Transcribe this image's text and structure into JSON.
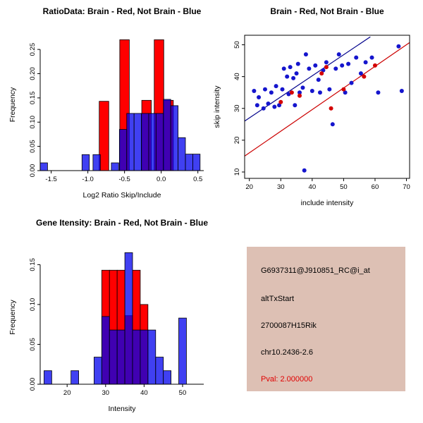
{
  "figure": {
    "bg": "#ffffff"
  },
  "colors": {
    "axis": "#000000",
    "brain_red": "#ff0000",
    "not_brain_blue": "#0000ee"
  },
  "chart_data": [
    {
      "type": "histogram",
      "title": "RatioData: Brain - Red, Not Brain - Blue",
      "xlabel": "Log2 Ratio Skip/Include",
      "ylabel": "Frequency",
      "xlim": [
        -1.65,
        0.58
      ],
      "ylim": [
        0,
        0.272
      ],
      "grid": false,
      "xticks": [
        [
          -1.5,
          "-1.5"
        ],
        [
          -1.0,
          "-1.0"
        ],
        [
          -0.5,
          "-0.5"
        ],
        [
          0.0,
          "0.0"
        ],
        [
          0.5,
          "0.5"
        ]
      ],
      "yticks": [
        [
          0,
          "0.00"
        ],
        [
          0.05,
          "0.05"
        ],
        [
          0.1,
          "0.10"
        ],
        [
          0.15,
          "0.15"
        ],
        [
          0.2,
          "0.20"
        ],
        [
          0.25,
          "0.25"
        ]
      ],
      "margins": {
        "l": 57,
        "r": 11,
        "t": 25,
        "b": 58
      },
      "series": [
        {
          "name": "Brain",
          "color": "#ff0000",
          "opacity": 1,
          "bin_width": 0.13,
          "bars": [
            [
              -0.78,
              0.143
            ],
            [
              -0.5,
              0.27
            ],
            [
              -0.2,
              0.145
            ],
            [
              -0.03,
              0.27
            ],
            [
              0.1,
              0.145
            ]
          ]
        },
        {
          "name": "Not Brain",
          "color": "#0000ee",
          "opacity": 0.75,
          "bin_width": 0.1,
          "bars": [
            [
              -1.6,
              0.016
            ],
            [
              -1.03,
              0.033
            ],
            [
              -0.88,
              0.033
            ],
            [
              -0.63,
              0.016
            ],
            [
              -0.52,
              0.085
            ],
            [
              -0.42,
              0.118
            ],
            [
              -0.32,
              0.118
            ],
            [
              -0.22,
              0.118
            ],
            [
              -0.12,
              0.118
            ],
            [
              -0.02,
              0.118
            ],
            [
              0.08,
              0.147
            ],
            [
              0.18,
              0.134
            ],
            [
              0.28,
              0.068
            ],
            [
              0.38,
              0.034
            ],
            [
              0.48,
              0.034
            ]
          ]
        }
      ]
    },
    {
      "type": "scatter",
      "title": "Brain - Red, Not Brain - Blue",
      "xlabel": "include intensity",
      "ylabel": "skip intensity",
      "xlim": [
        18.5,
        71
      ],
      "ylim": [
        8,
        53
      ],
      "box": true,
      "grid": false,
      "xticks": [
        [
          20,
          "20"
        ],
        [
          30,
          "30"
        ],
        [
          40,
          "40"
        ],
        [
          50,
          "50"
        ],
        [
          60,
          "60"
        ],
        [
          70,
          "70"
        ]
      ],
      "yticks": [
        [
          10,
          "10"
        ],
        [
          20,
          "20"
        ],
        [
          30,
          "30"
        ],
        [
          40,
          "40"
        ],
        [
          50,
          "50"
        ]
      ],
      "margins": {
        "l": 47,
        "r": 19,
        "t": 20,
        "b": 47
      },
      "lines": [
        {
          "name": "not-brain-fit",
          "color": "#00008b",
          "x1": 18.5,
          "y1": 26.0,
          "x2": 58.5,
          "y2": 52.5
        },
        {
          "name": "brain-fit",
          "color": "#cc0000",
          "x1": 18.5,
          "y1": 15.0,
          "x2": 71,
          "y2": 50.7
        }
      ],
      "point_series": [
        {
          "name": "Not Brain",
          "color": "#1515cd",
          "points": [
            [
              21.5,
              35.5
            ],
            [
              22.5,
              31
            ],
            [
              23,
              33.5
            ],
            [
              24.5,
              30
            ],
            [
              25,
              36
            ],
            [
              26,
              31.5
            ],
            [
              27,
              35
            ],
            [
              28,
              30.5
            ],
            [
              28.5,
              37
            ],
            [
              29.5,
              31
            ],
            [
              30.5,
              36
            ],
            [
              31,
              42.5
            ],
            [
              32,
              40
            ],
            [
              32.5,
              34.5
            ],
            [
              33,
              43
            ],
            [
              34,
              39.5
            ],
            [
              34.5,
              31
            ],
            [
              35,
              41
            ],
            [
              35.5,
              44
            ],
            [
              36,
              35
            ],
            [
              37,
              36.5
            ],
            [
              37.5,
              10.5
            ],
            [
              38,
              47
            ],
            [
              39,
              42.5
            ],
            [
              40,
              35.5
            ],
            [
              41,
              43.5
            ],
            [
              42,
              39
            ],
            [
              42.5,
              35
            ],
            [
              43.5,
              42
            ],
            [
              44.5,
              44.5
            ],
            [
              45.5,
              36
            ],
            [
              46.5,
              25
            ],
            [
              47.5,
              42.5
            ],
            [
              48.5,
              47
            ],
            [
              49.5,
              43.5
            ],
            [
              50.5,
              35
            ],
            [
              51.5,
              44
            ],
            [
              52.5,
              38
            ],
            [
              54,
              46
            ],
            [
              55.5,
              41
            ],
            [
              57,
              44.5
            ],
            [
              59,
              46
            ],
            [
              61,
              35
            ],
            [
              67.5,
              49.5
            ],
            [
              68.5,
              35.5
            ]
          ]
        },
        {
          "name": "Brain",
          "color": "#d40000",
          "points": [
            [
              30,
              32
            ],
            [
              33.5,
              35
            ],
            [
              36,
              34
            ],
            [
              43,
              41
            ],
            [
              44.5,
              43
            ],
            [
              46,
              30
            ],
            [
              50,
              36
            ],
            [
              56.5,
              40
            ],
            [
              60,
              43.5
            ]
          ]
        }
      ]
    },
    {
      "type": "histogram",
      "title": "Gene Itensity: Brain - Red, Not Brain - Blue",
      "xlabel": "Intensity",
      "ylabel": "Frequency",
      "xlim": [
        13,
        55.5
      ],
      "ylim": [
        0,
        0.168
      ],
      "grid": false,
      "xticks": [
        [
          20,
          "20"
        ],
        [
          30,
          "30"
        ],
        [
          40,
          "40"
        ],
        [
          50,
          "50"
        ]
      ],
      "yticks": [
        [
          0,
          "0.00"
        ],
        [
          0.05,
          "0.05"
        ],
        [
          0.1,
          "0.10"
        ],
        [
          0.15,
          "0.15"
        ]
      ],
      "margins": {
        "l": 57,
        "r": 11,
        "t": 25,
        "b": 55
      },
      "series": [
        {
          "name": "Brain",
          "color": "#ff0000",
          "opacity": 1,
          "bin_width": 2,
          "bars": [
            [
              30,
              0.143
            ],
            [
              32,
              0.143
            ],
            [
              34,
              0.143
            ],
            [
              36,
              0.086
            ],
            [
              38,
              0.143
            ],
            [
              40,
              0.1
            ]
          ]
        },
        {
          "name": "Not Brain",
          "color": "#0000ee",
          "opacity": 0.75,
          "bin_width": 2,
          "bars": [
            [
              15,
              0.017
            ],
            [
              22,
              0.017
            ],
            [
              28,
              0.034
            ],
            [
              30,
              0.085
            ],
            [
              32,
              0.068
            ],
            [
              34,
              0.068
            ],
            [
              36,
              0.165
            ],
            [
              38,
              0.068
            ],
            [
              40,
              0.068
            ],
            [
              42,
              0.068
            ],
            [
              44,
              0.034
            ],
            [
              46,
              0.017
            ],
            [
              50,
              0.083
            ]
          ]
        }
      ]
    }
  ],
  "info_box": {
    "bg": "#ddc0b4",
    "lines": [
      {
        "text": "G6937311@J910851_RC@i_at",
        "color": "#000000"
      },
      {
        "text": "altTxStart",
        "color": "#000000"
      },
      {
        "text": "2700087H15Rik",
        "color": "#000000"
      },
      {
        "text": "chr10.2436-2.6",
        "color": "#000000"
      },
      {
        "text": "Pval: 2.000000",
        "color": "#e00000"
      }
    ]
  }
}
